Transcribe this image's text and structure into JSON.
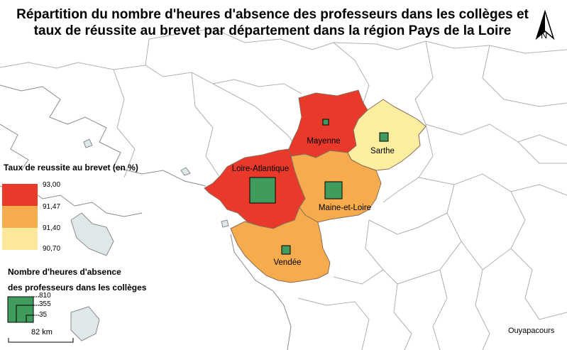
{
  "title": "Répartition du nombre d'heures d'absence des professeurs dans les collèges et taux de réussite au brevet par département dans la région Pays de la Loire",
  "north_label": "N",
  "legend_choropleth": {
    "title": "Taux de reussite au brevet (en %)",
    "classes": [
      {
        "color": "#e8392a",
        "value": "93,00"
      },
      {
        "color": "#f6ab4c",
        "value": "91,47"
      },
      {
        "color": "#fbe89a",
        "value": "91,40"
      },
      {
        "value": "90,70"
      }
    ]
  },
  "legend_symbols": {
    "title_line1": "Nombre d'heures d'absence",
    "title_line2": "des professeurs dans les collèges",
    "sizes": [
      "810",
      "355",
      "35"
    ],
    "symbol_color": "#3f9c5c"
  },
  "scale_bar": {
    "label": "82 km"
  },
  "credit": "Ouyapacours",
  "departments": [
    {
      "name": "Mayenne",
      "fill": "#e8392a",
      "symbol_value": 35
    },
    {
      "name": "Sarthe",
      "fill": "#fbee9e",
      "symbol_value": 60
    },
    {
      "name": "Loire-Atlantique",
      "fill": "#e8392a",
      "symbol_value": 810
    },
    {
      "name": "Maine-et-Loire",
      "fill": "#f6ab4c",
      "symbol_value": 355
    },
    {
      "name": "Vendée",
      "fill": "#f6ab4c",
      "symbol_value": 60
    }
  ]
}
